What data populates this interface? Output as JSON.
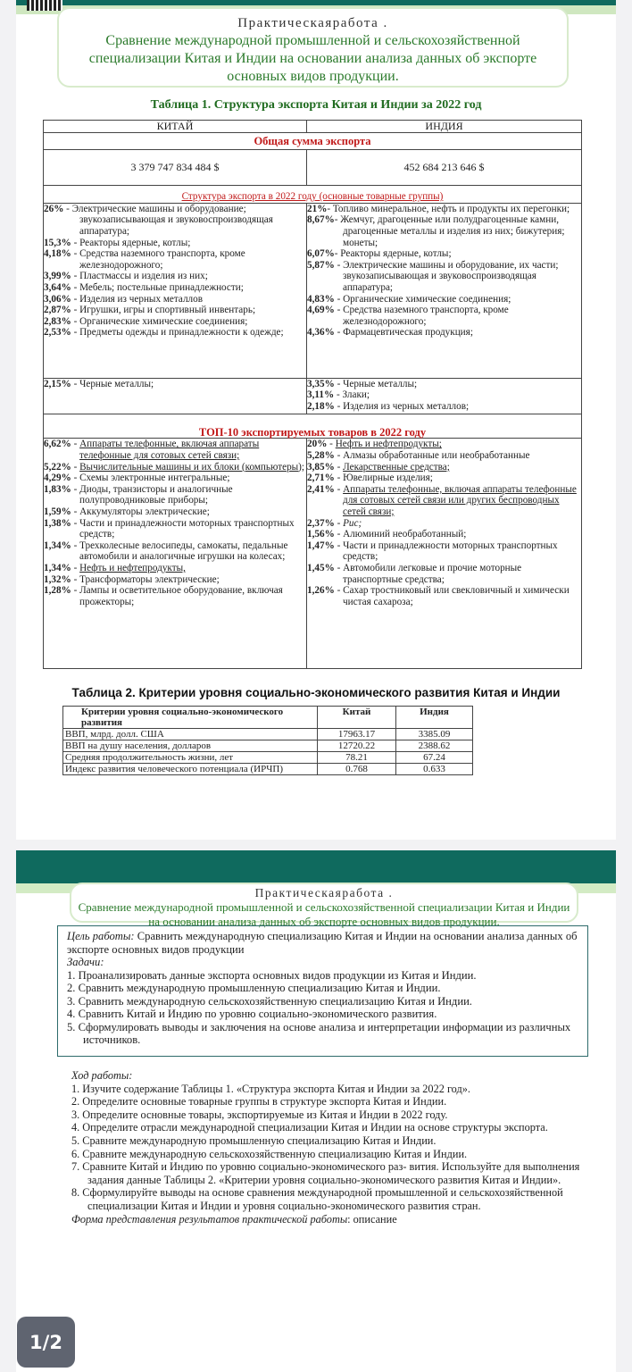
{
  "header": {
    "label": "Практическаяработа .",
    "title": "Сравнение международной промышленной и сельскохозяйственной специализации Китая и Индии на основании анализа данных об экспорте основных видов продукции."
  },
  "table1": {
    "title": "Таблица 1. Структура экспорта Китая и Индии за 2022 год",
    "col_china": "КИТАЙ",
    "col_india": "ИНДИЯ",
    "total_label": "Общая сумма экспорта",
    "total_china": "3 379 747 834 484 $",
    "total_india": "452 684 213 646 $",
    "structure_label": "Структура экспорта в 2022 году (основные товарные группы)",
    "china_groups": [
      {
        "pct": "26%",
        "text": " - Электрические машины и оборудование; звукозаписывающая и звуковоспроизводящая аппаратура;"
      },
      {
        "pct": "15,3%",
        "text": " - Реакторы ядерные, котлы;"
      },
      {
        "pct": "4,18%",
        "text": " - Средства наземного транспорта, кроме железнодорожного;"
      },
      {
        "pct": "3,99%",
        "text": " - Пластмассы и изделия из них;"
      },
      {
        "pct": "3,64%",
        "text": " - Мебель; постельные принадлежности;"
      },
      {
        "pct": "3,06%",
        "text": " - Изделия из черных металлов"
      },
      {
        "pct": "2,87%",
        "text": " - Игрушки, игры и спортивный инвентарь;"
      },
      {
        "pct": "2,83%",
        "text": " - Органические химические соединения;"
      },
      {
        "pct": "2,53%",
        "text": " - Предметы одежды и принадлежности к одежде;"
      }
    ],
    "india_groups": [
      {
        "pct": "21%",
        "text": "- Топливо минеральное, нефть и продукты их перегонки;"
      },
      {
        "pct": "8,67%",
        "text": "- Жемчуг, драгоценные или полудрагоценные камни, драгоценные металлы и изделия из них; бижутерия; монеты;"
      },
      {
        "pct": "6,07%",
        "text": "- Реакторы ядерные, котлы;"
      },
      {
        "pct": "5,87%",
        "text": " - Электрические машины и оборудование, их части; звукозаписывающая и звуковоспроизводящая аппаратура;"
      },
      {
        "pct": "4,83%",
        "text": " - Органические химические соединения;"
      },
      {
        "pct": "4,69%",
        "text": " - Средства наземного транспорта, кроме железнодорожного;"
      },
      {
        "pct": "4,36%",
        "text": " - Фармацевтическая продукция;"
      }
    ],
    "china_extra": [
      {
        "pct": "2,15%",
        "text": " - Черные металлы;"
      }
    ],
    "india_extra": [
      {
        "pct": "3,35%",
        "text": " - Черные металлы;"
      },
      {
        "pct": "3,11%",
        "text": " - Злаки;"
      },
      {
        "pct": "2,18%",
        "text": " - Изделия из черных металлов;"
      }
    ],
    "top10_label": "ТОП-10 экспортируемых товаров в 2022 году",
    "china_top": [
      {
        "pct": "6,62%",
        "text": "Аппараты телефонные, включая аппараты телефонные для сотовых сетей связи;",
        "u": true
      },
      {
        "pct": "5,22%",
        "text": "Вычислительные машины и их блоки (компьютеры);",
        "u": true
      },
      {
        "pct": "4,29%",
        "text": "Схемы электронные интегральные;"
      },
      {
        "pct": "1,83%",
        "text": "Диоды, транзисторы и аналогичные полупроводниковые приборы;"
      },
      {
        "pct": "1,59%",
        "text": "Аккумуляторы электрические;"
      },
      {
        "pct": "1,38%",
        "text": "Части и принадлежности моторных транспортных средств;"
      },
      {
        "pct": "1,34%",
        "text": "Трехколесные велосипеды, самокаты, педальные автомобили и аналогичные игрушки на колесах;"
      },
      {
        "pct": "1,34%",
        "text": "Нефть и нефтепродукты,",
        "u": true
      },
      {
        "pct": "1,32%",
        "text": "Трансформаторы электрические;"
      },
      {
        "pct": "1,28%",
        "text": "Лампы и осветительное оборудование, включая прожекторы;"
      }
    ],
    "india_top": [
      {
        "pct": "20%",
        "text": "Нефть и нефтепродукты;",
        "u": true
      },
      {
        "pct": "5,28%",
        "text": "Алмазы обработанные или необработанные"
      },
      {
        "pct": "3,85%",
        "text": "Лекарственные средства;",
        "u": true
      },
      {
        "pct": "2,71%",
        "text": "Ювелирные изделия;"
      },
      {
        "pct": "2,41%",
        "text": "Аппараты телефонные, включая аппараты телефонные для сотовых сетей связи или других беспроводных сетей связи;",
        "u": true
      },
      {
        "pct": "2,37%",
        "text": "Рис;",
        "i": true
      },
      {
        "pct": "1,56%",
        "text": "Алюминий необработанный;"
      },
      {
        "pct": "1,47%",
        "text": "Части и принадлежности моторных транспортных средств;"
      },
      {
        "pct": "1,45%",
        "text": "Автомобили легковые и прочие моторные транспортные средства;"
      },
      {
        "pct": "1,26%",
        "text": "Сахар тростниковый или свекловичный и химически чистая сахароза;"
      }
    ]
  },
  "table2": {
    "title": "Таблица 2. Критерии уровня социально-экономического развития Китая и Индии",
    "headers": [
      "Критерии уровня социально-экономического развития",
      "Китай",
      "Индия"
    ],
    "rows": [
      [
        "ВВП, млрд. долл. США",
        "17963.17",
        "3385.09"
      ],
      [
        "ВВП на душу населения, долларов",
        "12720.22",
        "2388.62"
      ],
      [
        "Средняя продолжительность жизни, лет",
        "78.21",
        "67.24"
      ],
      [
        "Индекс развития человеческого потенциала (ИРЧП)",
        "0.768",
        "0.633"
      ]
    ]
  },
  "goal": {
    "label": "Цель работы:",
    "text": " Сравнить международную специализацию Китая и Индии на основании анализа данных об экспорте основных видов продукции",
    "tasks_label": "Задачи:",
    "tasks": [
      "Проанализировать данные экспорта основных видов продукции из Китая и Индии.",
      "Сравнить международную промышленную специализацию Китая и Индии.",
      "Сравнить международную сельскохозяйственную специализацию Китая и Индии.",
      "Сравнить Китай и Индию по уровню социально-экономического развития.",
      "Сформулировать выводы и заключения на основе анализа и интерпретации информации из различных источников."
    ]
  },
  "work": {
    "label": "Ход работы:",
    "steps": [
      "Изучите содержание Таблицы 1. «Структура экспорта Китая и Индии за 2022 год».",
      "Определите основные товарные группы в структуре экспорта Китая и Индии.",
      "Определите основные товары, экспортируемые из Китая и Индии в 2022 году.",
      "Определите отрасли международной специализации Китая и Индии на основе структуры экспорта.",
      "Сравните международную промышленную специализацию Китая и Индии.",
      "Сравните международную сельскохозяйственную специализацию Китая и Индии.",
      "Сравните Китай и Индию по уровню социально-экономического раз- вития. Используйте для выполнения задания данные Таблицы 2. «Критерии уровня социально-экономического развития Китая и Индии».",
      "Сформулируйте выводы на основе сравнения международной промышленной и сельскохозяйственной специализации Китая и Индии и уровня социально-экономического развития стран."
    ],
    "form_label": "Форма представления результатов практической работы",
    "form_value": ": описание"
  },
  "page_indicator": "1/2",
  "colors": {
    "teal": "#0f6a5e",
    "title_green": "#2b7a2b",
    "red": "#c01818"
  }
}
